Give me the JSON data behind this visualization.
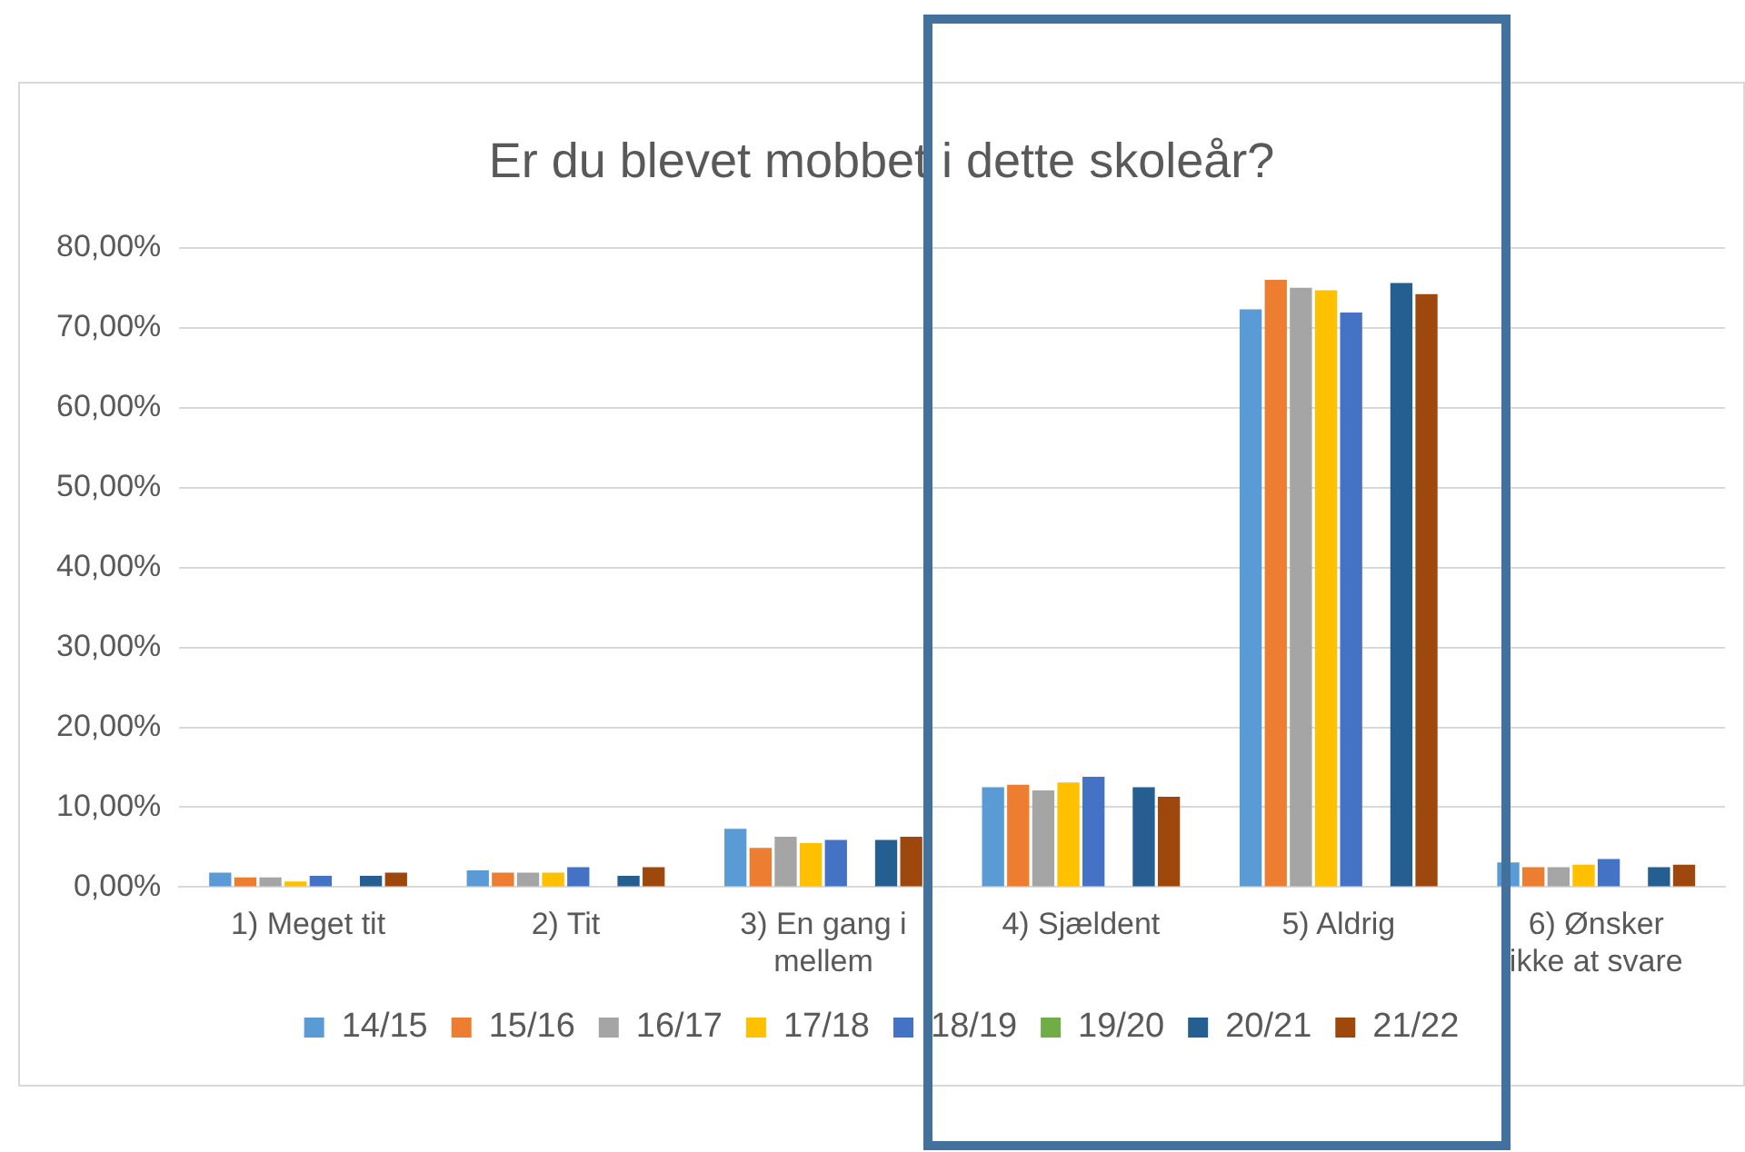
{
  "chart_data": {
    "type": "bar",
    "title": "Er du blevet mobbet i dette skoleår?",
    "categories": [
      "1) Meget tit",
      "2) Tit",
      "3) En gang i mellem",
      "4) Sjældent",
      "5) Aldrig",
      "6) Ønsker ikke at svare"
    ],
    "series": [
      {
        "name": "14/15",
        "color": "#5b9bd5",
        "values": [
          1.8,
          2.1,
          7.3,
          12.5,
          72.3,
          3.1
        ]
      },
      {
        "name": "15/16",
        "color": "#ed7d31",
        "values": [
          1.2,
          1.8,
          4.9,
          12.8,
          76.0,
          2.5
        ]
      },
      {
        "name": "16/17",
        "color": "#a5a5a5",
        "values": [
          1.2,
          1.8,
          6.3,
          12.1,
          75.0,
          2.5
        ]
      },
      {
        "name": "17/18",
        "color": "#ffc000",
        "values": [
          0.7,
          1.8,
          5.5,
          13.1,
          74.7,
          2.8
        ]
      },
      {
        "name": "18/19",
        "color": "#4472c4",
        "values": [
          1.4,
          2.5,
          5.9,
          13.8,
          71.9,
          3.5
        ]
      },
      {
        "name": "19/20",
        "color": "#70ad47",
        "values": [
          null,
          null,
          null,
          null,
          null,
          null
        ]
      },
      {
        "name": "20/21",
        "color": "#255e91",
        "values": [
          1.4,
          1.4,
          5.9,
          12.5,
          75.6,
          2.5
        ]
      },
      {
        "name": "21/22",
        "color": "#9e480e",
        "values": [
          1.8,
          2.5,
          6.3,
          11.3,
          74.2,
          2.8
        ]
      }
    ],
    "ylim": [
      0,
      80
    ],
    "yticks": [
      {
        "value": 0,
        "label": "0,00%"
      },
      {
        "value": 10,
        "label": "10,00%"
      },
      {
        "value": 20,
        "label": "20,00%"
      },
      {
        "value": 30,
        "label": "30,00%"
      },
      {
        "value": 40,
        "label": "40,00%"
      },
      {
        "value": 50,
        "label": "50,00%"
      },
      {
        "value": 60,
        "label": "60,00%"
      },
      {
        "value": 70,
        "label": "70,00%"
      },
      {
        "value": 80,
        "label": "80,00%"
      }
    ],
    "grid": "y",
    "legend": "bottom"
  }
}
